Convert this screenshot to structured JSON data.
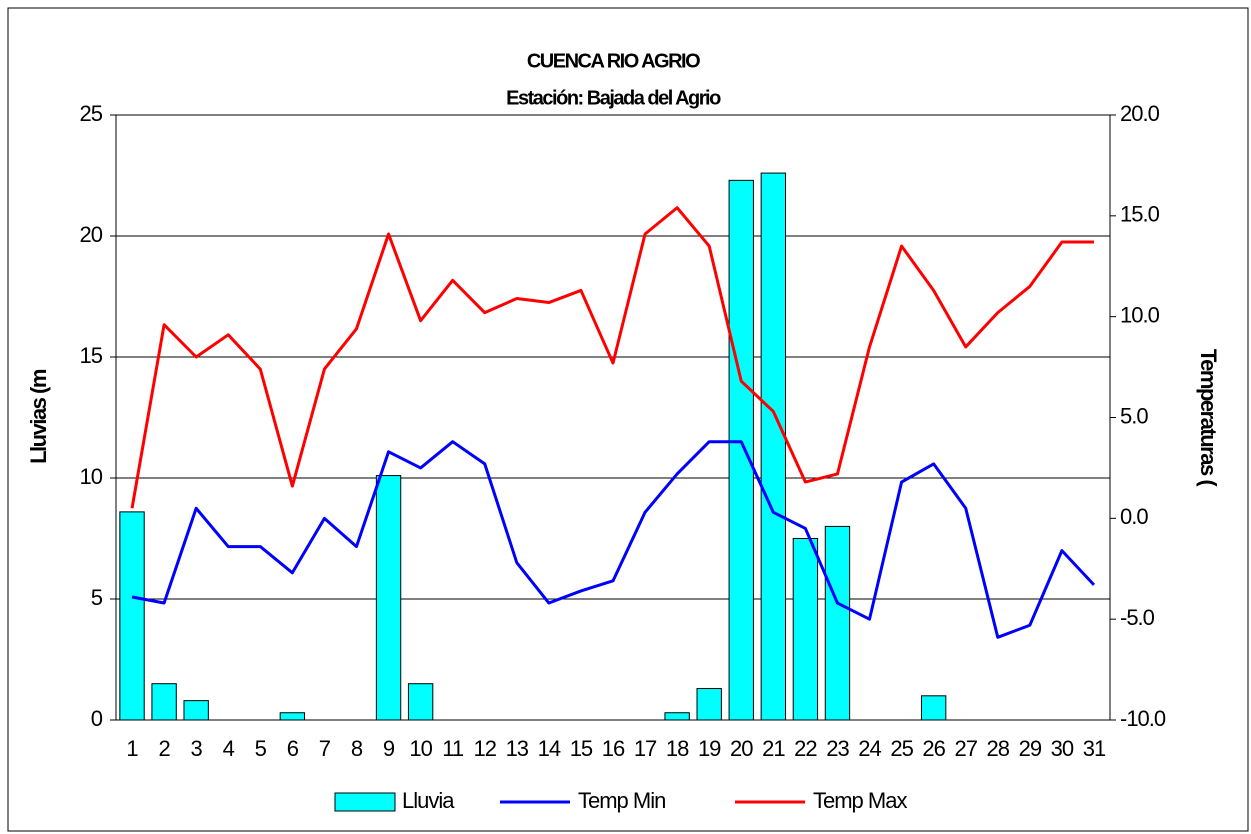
{
  "chart_data": {
    "type": "bar",
    "title": "CUENCA RIO AGRIO",
    "subtitle": "Estación: Bajada del Agrio",
    "y_label": "Lluvias (m",
    "y2_label": "Temperaturas (",
    "categories": [
      1,
      2,
      3,
      4,
      5,
      6,
      7,
      8,
      9,
      10,
      11,
      12,
      13,
      14,
      15,
      16,
      17,
      18,
      19,
      20,
      21,
      22,
      23,
      24,
      25,
      26,
      27,
      28,
      29,
      30,
      31
    ],
    "ylim": [
      0,
      25
    ],
    "yticks": [
      0,
      5,
      10,
      15,
      20,
      25
    ],
    "y2lim": [
      -10,
      20
    ],
    "y2ticks": [
      {
        "value": -10,
        "label": "-10.0"
      },
      {
        "value": -5,
        "label": "-5.0"
      },
      {
        "value": 0,
        "label": "0.0"
      },
      {
        "value": 5,
        "label": "5.0"
      },
      {
        "value": 10,
        "label": "10.0"
      },
      {
        "value": 15,
        "label": "15.0"
      },
      {
        "value": 20,
        "label": "20.0"
      }
    ],
    "grid": true,
    "legend": "bottom",
    "series": [
      {
        "name": "Lluvia",
        "type": "bar",
        "color": "#00ffff",
        "values": [
          8.6,
          1.5,
          0.8,
          0,
          0,
          0.3,
          0,
          0,
          10.1,
          1.5,
          0,
          0,
          0,
          0,
          0,
          0,
          0,
          0.3,
          1.3,
          22.3,
          22.6,
          7.5,
          8.0,
          0,
          0,
          1.0,
          0,
          0,
          0,
          0,
          0
        ]
      },
      {
        "name": "Temp Min",
        "type": "line",
        "axis": "y2",
        "color": "#0000ff",
        "values": [
          -3.9,
          -4.2,
          0.5,
          -1.4,
          -1.4,
          -2.7,
          0.0,
          -1.4,
          3.3,
          2.5,
          3.8,
          2.7,
          -2.2,
          -4.2,
          -3.6,
          -3.1,
          0.3,
          2.2,
          3.8,
          3.8,
          0.3,
          -0.5,
          -4.2,
          -5.0,
          1.8,
          2.7,
          0.5,
          -5.9,
          -5.3,
          -1.6,
          -3.3
        ]
      },
      {
        "name": "Temp Max",
        "type": "line",
        "axis": "y2",
        "color": "#ff0000",
        "values": [
          0.5,
          9.6,
          8.0,
          9.1,
          7.4,
          1.6,
          7.4,
          9.4,
          14.1,
          9.8,
          11.8,
          10.2,
          10.9,
          10.7,
          11.3,
          7.7,
          14.1,
          15.4,
          13.5,
          6.8,
          5.3,
          1.8,
          2.2,
          8.5,
          13.5,
          11.3,
          8.5,
          10.2,
          11.5,
          13.7,
          13.7
        ]
      }
    ]
  }
}
